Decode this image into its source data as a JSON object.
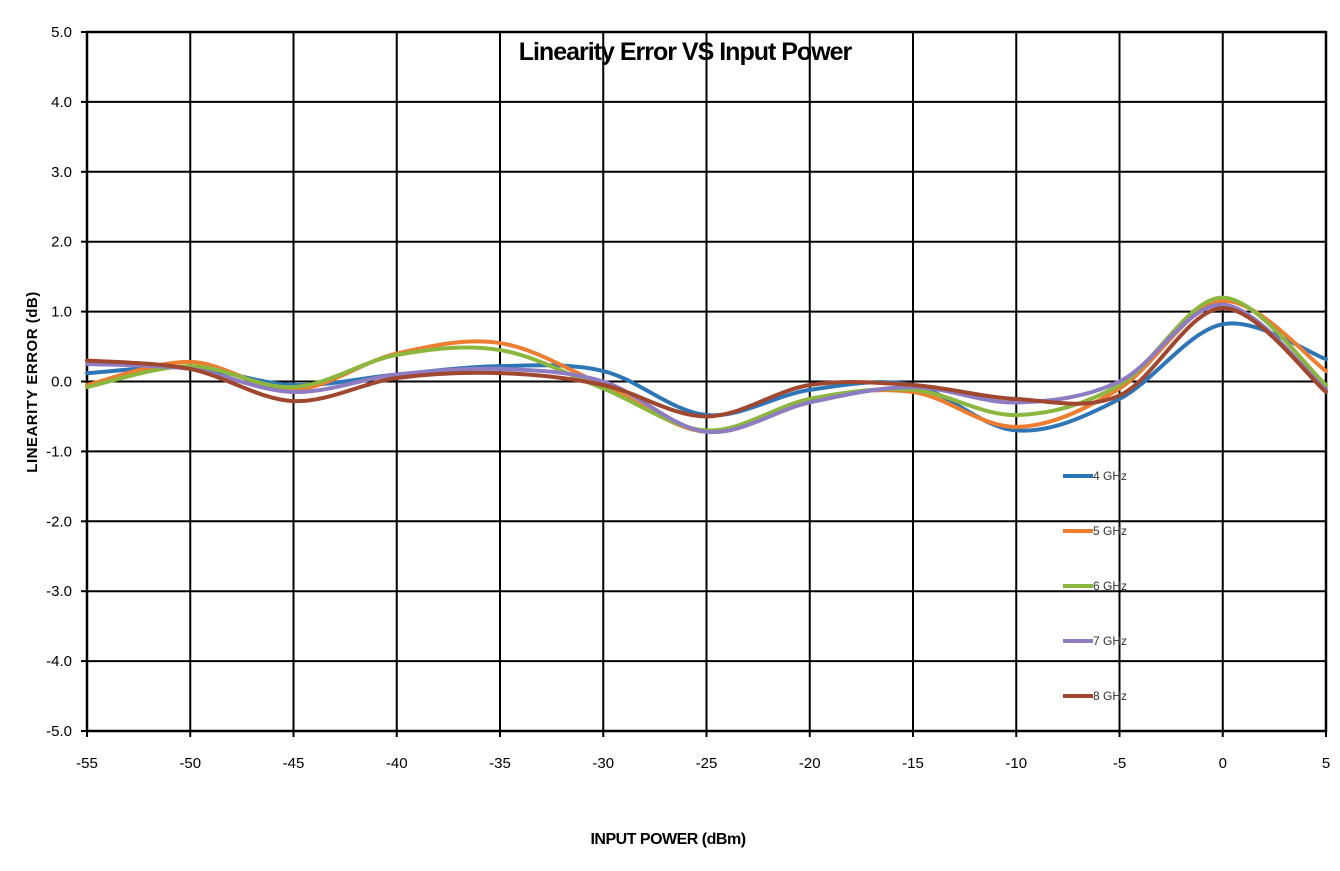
{
  "chart_data": {
    "type": "line",
    "title": "Linearity Error VS Input Power",
    "xlabel": "INPUT POWER (dBm)",
    "ylabel": "LINEARITY ERROR (dB)",
    "xlim": [
      -55,
      5
    ],
    "ylim": [
      -5.0,
      5.0
    ],
    "x_ticks": [
      "-55",
      "-50",
      "-45",
      "-40",
      "-35",
      "-30",
      "-25",
      "-20",
      "-15",
      "-10",
      "-5",
      "0",
      "5"
    ],
    "y_ticks": [
      "5.0",
      "4.0",
      "3.0",
      "2.0",
      "1.0",
      "0.0",
      "-1.0",
      "-2.0",
      "-3.0",
      "-4.0",
      "-5.0"
    ],
    "grid": true,
    "legend_position": "right",
    "x": [
      -55,
      -50,
      -45,
      -40,
      -35,
      -30,
      -25,
      -20,
      -15,
      -10,
      -5,
      0,
      5
    ],
    "series": [
      {
        "name": "4 GHz",
        "color": "#2e75b6",
        "values": [
          0.12,
          0.2,
          -0.05,
          0.1,
          0.22,
          0.15,
          -0.48,
          -0.12,
          -0.05,
          -0.7,
          -0.25,
          0.82,
          0.32
        ]
      },
      {
        "name": "5 GHz",
        "color": "#ed7d31",
        "values": [
          -0.05,
          0.28,
          -0.12,
          0.4,
          0.55,
          -0.05,
          -0.72,
          -0.25,
          -0.15,
          -0.65,
          -0.1,
          1.15,
          0.15
        ]
      },
      {
        "name": "6 GHz",
        "color": "#8cb73f",
        "values": [
          -0.08,
          0.22,
          -0.08,
          0.38,
          0.45,
          -0.1,
          -0.7,
          -0.25,
          -0.12,
          -0.48,
          -0.05,
          1.2,
          -0.05
        ]
      },
      {
        "name": "7 GHz",
        "color": "#8e7cc3",
        "values": [
          0.25,
          0.18,
          -0.15,
          0.1,
          0.18,
          0.0,
          -0.72,
          -0.3,
          -0.08,
          -0.3,
          0.0,
          1.1,
          -0.12
        ]
      },
      {
        "name": "8 GHz",
        "color": "#a0472f",
        "values": [
          0.3,
          0.18,
          -0.28,
          0.05,
          0.12,
          -0.05,
          -0.5,
          -0.05,
          -0.05,
          -0.25,
          -0.2,
          1.05,
          -0.15
        ]
      }
    ]
  }
}
